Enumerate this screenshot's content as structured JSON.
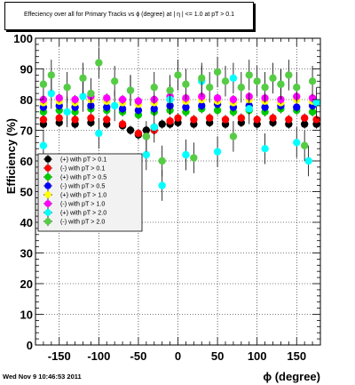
{
  "title": "Effeciency over all for Primary Tracks vs ϕ (degree) at | η | <= 1.0 at pT > 0.1",
  "footer": "Wed Nov  9 10:46:53 2011",
  "chart_data": {
    "type": "scatter",
    "xlabel": "ϕ (degree)",
    "ylabel": "Efficiency (%)",
    "xlim": [
      -180,
      180
    ],
    "ylim": [
      0,
      100
    ],
    "xticks": [
      -150,
      -100,
      -50,
      0,
      50,
      100,
      150
    ],
    "yticks": [
      0,
      10,
      20,
      30,
      40,
      50,
      60,
      70,
      80,
      90,
      100
    ],
    "grid": true,
    "legend_position": "middle-left",
    "series": [
      {
        "name": "(+) with pT > 0.1",
        "color": "#000000",
        "x": [
          -170,
          -150,
          -130,
          -110,
          -90,
          -70,
          -60,
          -50,
          -40,
          -30,
          -20,
          -10,
          0,
          20,
          40,
          60,
          80,
          100,
          120,
          140,
          160,
          175
        ],
        "y": [
          72,
          72.5,
          72,
          72.5,
          72,
          71.5,
          70,
          68.5,
          70,
          71,
          72,
          72,
          72.5,
          72,
          72.5,
          72,
          72.5,
          72,
          72.5,
          72,
          72,
          72
        ]
      },
      {
        "name": "(-) with pT > 0.1",
        "color": "#ff0000",
        "x": [
          -170,
          -150,
          -130,
          -110,
          -90,
          -70,
          -50,
          -40,
          -30,
          -10,
          0,
          20,
          40,
          60,
          80,
          100,
          120,
          140,
          160,
          175
        ],
        "y": [
          73.5,
          74,
          73.5,
          74,
          73.5,
          72,
          69,
          68,
          70,
          73,
          74,
          73.5,
          74,
          73.5,
          74,
          73.5,
          74,
          73.5,
          74,
          73.5
        ]
      },
      {
        "name": "(+) with pT > 0.5",
        "color": "#00cc00",
        "x": [
          -170,
          -150,
          -130,
          -110,
          -90,
          -70,
          -50,
          -30,
          -10,
          10,
          30,
          50,
          70,
          90,
          110,
          130,
          150,
          170
        ],
        "y": [
          76,
          76.5,
          76,
          77,
          76.5,
          76,
          75,
          76,
          76.5,
          76,
          77,
          76.5,
          76,
          76.5,
          76,
          77,
          76.5,
          76
        ]
      },
      {
        "name": "(-) with pT > 0.5",
        "color": "#0000ff",
        "x": [
          -170,
          -150,
          -130,
          -110,
          -90,
          -70,
          -50,
          -30,
          -10,
          10,
          30,
          50,
          70,
          90,
          110,
          130,
          150,
          170
        ],
        "y": [
          77.5,
          78,
          77.5,
          78,
          77.5,
          77,
          76.5,
          77,
          78,
          77.5,
          78,
          78.5,
          77.5,
          78,
          77.5,
          78,
          77.5,
          78
        ]
      },
      {
        "name": "(+) with pT > 1.0",
        "color": "#ffff00",
        "x": [
          -170,
          -150,
          -130,
          -110,
          -90,
          -70,
          -50,
          -30,
          -10,
          10,
          30,
          50,
          70,
          90,
          110,
          130,
          150,
          170
        ],
        "y": [
          79,
          79.5,
          79,
          80,
          79.5,
          79,
          78.5,
          79,
          80,
          79.5,
          80,
          79.5,
          79,
          80,
          79.5,
          79,
          80,
          79.5
        ]
      },
      {
        "name": "(-) with pT > 1.0",
        "color": "#ff00ff",
        "x": [
          -170,
          -150,
          -130,
          -110,
          -90,
          -70,
          -50,
          -30,
          -10,
          10,
          30,
          50,
          70,
          90,
          110,
          130,
          150,
          170
        ],
        "y": [
          80,
          80.5,
          80,
          81,
          80.5,
          80,
          79.5,
          80,
          81,
          80.5,
          81,
          80.5,
          80,
          81,
          80.5,
          80,
          81,
          80.5
        ]
      },
      {
        "name": "(+) with pT > 2.0",
        "color": "#00ffff",
        "x": [
          -170,
          -160,
          -140,
          -120,
          -100,
          -80,
          -60,
          -40,
          -30,
          -20,
          -10,
          10,
          30,
          50,
          70,
          90,
          110,
          130,
          150,
          165,
          175
        ],
        "y": [
          65,
          82,
          76,
          81,
          69,
          78,
          83,
          62,
          71,
          52,
          80,
          62,
          86,
          63,
          87,
          77,
          64,
          85,
          66,
          60,
          79
        ]
      },
      {
        "name": "(-) with pT > 2.0",
        "color": "#55cc44",
        "x": [
          -170,
          -160,
          -140,
          -120,
          -110,
          -100,
          -80,
          -60,
          -50,
          -40,
          -30,
          -20,
          -10,
          0,
          10,
          20,
          30,
          40,
          50,
          60,
          70,
          80,
          90,
          100,
          110,
          120,
          130,
          140,
          150,
          160,
          170
        ],
        "y": [
          85,
          88,
          84,
          87,
          82,
          92,
          86,
          83,
          53,
          68,
          84,
          60,
          83,
          88,
          85,
          61,
          87,
          84,
          89,
          86,
          68,
          84,
          88,
          86,
          84,
          87,
          85,
          88,
          84,
          65,
          86
        ]
      }
    ]
  }
}
